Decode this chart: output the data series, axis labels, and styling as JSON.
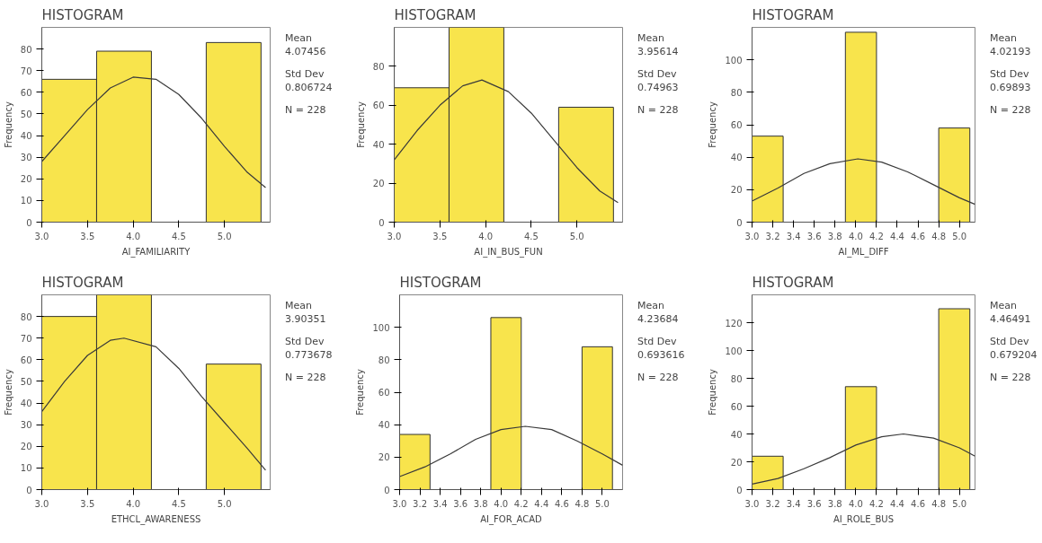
{
  "chart_data": [
    {
      "type": "histogram",
      "title": "HISTOGRAM",
      "xlabel": "AI_FAMILIARITY",
      "ylabel": "Frequency",
      "color": "#f8e44c",
      "bins": [
        3.0,
        3.6,
        4.2,
        4.8,
        5.4
      ],
      "values": [
        66,
        79,
        0,
        83
      ],
      "series": [
        {
          "type": "line",
          "color": "#3a3a3a",
          "x": [
            3.0,
            3.25,
            3.5,
            3.75,
            4.0,
            4.25,
            4.5,
            4.75,
            5.0,
            5.25,
            5.45
          ],
          "values": [
            28,
            40,
            52,
            62,
            67,
            66,
            59,
            48,
            35,
            23,
            16
          ]
        }
      ],
      "xlim": [
        3.0,
        5.5
      ],
      "ylim": [
        0,
        90
      ],
      "xticks": [
        {
          "value": 3,
          "label": "3.0"
        },
        3.5,
        {
          "value": 4,
          "label": "4.0"
        },
        4.5,
        {
          "value": 5,
          "label": "5.0"
        }
      ],
      "yticks": [
        0,
        10,
        20,
        30,
        40,
        50,
        60,
        70,
        80
      ],
      "annotations": [
        "Mean",
        "4.07456",
        "Std Dev",
        "0.806724",
        "N = 228"
      ]
    },
    {
      "type": "histogram",
      "title": "HISTOGRAM",
      "xlabel": "AI_IN_BUS_FUN",
      "ylabel": "Frequency",
      "color": "#f8e44c",
      "bins": [
        3.0,
        3.6,
        4.2,
        4.8,
        5.4
      ],
      "values": [
        69,
        100,
        0,
        59
      ],
      "series": [
        {
          "type": "line",
          "color": "#3a3a3a",
          "x": [
            3.0,
            3.25,
            3.5,
            3.75,
            3.96,
            4.25,
            4.5,
            4.75,
            5.0,
            5.25,
            5.45
          ],
          "values": [
            32,
            47,
            60,
            70,
            73,
            67,
            56,
            42,
            28,
            16,
            10
          ]
        }
      ],
      "xlim": [
        3.0,
        5.5
      ],
      "ylim": [
        0,
        100
      ],
      "xticks": [
        {
          "value": 3,
          "label": "3.0"
        },
        3.5,
        {
          "value": 4,
          "label": "4.0"
        },
        4.5,
        {
          "value": 5,
          "label": "5.0"
        }
      ],
      "yticks": [
        0,
        20,
        40,
        60,
        80
      ],
      "annotations": [
        "Mean",
        "3.95614",
        "Std Dev",
        "0.74963",
        "N = 228"
      ]
    },
    {
      "type": "histogram",
      "title": "HISTOGRAM",
      "xlabel": "AI_ML_DIFF",
      "ylabel": "Frequency",
      "color": "#f8e44c",
      "bins": [
        3.0,
        3.3,
        3.6,
        3.9,
        4.2,
        4.5,
        4.8,
        5.1
      ],
      "values": [
        53,
        0,
        0,
        117,
        0,
        0,
        58
      ],
      "series": [
        {
          "type": "line",
          "color": "#3a3a3a",
          "x": [
            3.0,
            3.25,
            3.5,
            3.75,
            4.02,
            4.25,
            4.5,
            4.75,
            5.0,
            5.15
          ],
          "values": [
            13,
            21,
            30,
            36,
            39,
            37,
            31,
            23,
            15,
            11
          ]
        }
      ],
      "xlim": [
        3.0,
        5.15
      ],
      "ylim": [
        0,
        120
      ],
      "xticks": [
        {
          "value": 3,
          "label": "3.0"
        },
        3.2,
        3.4,
        3.6,
        3.8,
        {
          "value": 4,
          "label": "4.0"
        },
        4.2,
        4.4,
        4.6,
        4.8,
        {
          "value": 5,
          "label": "5.0"
        }
      ],
      "yticks": [
        0,
        20,
        40,
        60,
        80,
        100
      ],
      "annotations": [
        "Mean",
        "4.02193",
        "Std Dev",
        "0.69893",
        "N = 228"
      ]
    },
    {
      "type": "histogram",
      "title": "HISTOGRAM",
      "xlabel": "ETHCL_AWARENESS",
      "ylabel": "Frequency",
      "color": "#f8e44c",
      "bins": [
        3.0,
        3.6,
        4.2,
        4.8,
        5.4
      ],
      "values": [
        80,
        90,
        0,
        58
      ],
      "series": [
        {
          "type": "line",
          "color": "#3a3a3a",
          "x": [
            3.0,
            3.25,
            3.5,
            3.75,
            3.9,
            4.25,
            4.5,
            4.75,
            5.0,
            5.25,
            5.45
          ],
          "values": [
            36,
            50,
            62,
            69,
            70,
            66,
            56,
            43,
            31,
            19,
            9
          ]
        }
      ],
      "xlim": [
        3.0,
        5.5
      ],
      "ylim": [
        0,
        90
      ],
      "xticks": [
        {
          "value": 3,
          "label": "3.0"
        },
        3.5,
        {
          "value": 4,
          "label": "4.0"
        },
        4.5,
        {
          "value": 5,
          "label": "5.0"
        }
      ],
      "yticks": [
        0,
        10,
        20,
        30,
        40,
        50,
        60,
        70,
        80
      ],
      "annotations": [
        "Mean",
        "3.90351",
        "Std Dev",
        "0.773678",
        "N = 228"
      ]
    },
    {
      "type": "histogram",
      "title": "HISTOGRAM",
      "xlabel": "AI_FOR_ACAD",
      "ylabel": "Frequency",
      "color": "#f8e44c",
      "bins": [
        3.0,
        3.3,
        3.6,
        3.9,
        4.2,
        4.5,
        4.8,
        5.1
      ],
      "values": [
        34,
        0,
        0,
        106,
        0,
        0,
        88
      ],
      "series": [
        {
          "type": "line",
          "color": "#3a3a3a",
          "x": [
            3.0,
            3.25,
            3.5,
            3.75,
            4.0,
            4.24,
            4.5,
            4.75,
            5.0,
            5.2
          ],
          "values": [
            8,
            14,
            22,
            31,
            37,
            39,
            37,
            30,
            22,
            15
          ]
        }
      ],
      "xlim": [
        3.0,
        5.2
      ],
      "ylim": [
        0,
        120
      ],
      "xticks": [
        {
          "value": 3,
          "label": "3.0"
        },
        3.2,
        3.4,
        3.6,
        3.8,
        {
          "value": 4,
          "label": "4.0"
        },
        4.2,
        4.4,
        4.6,
        4.8,
        {
          "value": 5,
          "label": "5.0"
        }
      ],
      "yticks": [
        0,
        20,
        40,
        60,
        80,
        100
      ],
      "annotations": [
        "Mean",
        "4.23684",
        "Std Dev",
        "0.693616",
        "N = 228"
      ]
    },
    {
      "type": "histogram",
      "title": "HISTOGRAM",
      "xlabel": "AI_ROLE_BUS",
      "ylabel": "Frequency",
      "color": "#f8e44c",
      "bins": [
        3.0,
        3.3,
        3.6,
        3.9,
        4.2,
        4.5,
        4.8,
        5.1
      ],
      "values": [
        24,
        0,
        0,
        74,
        0,
        0,
        130
      ],
      "series": [
        {
          "type": "line",
          "color": "#3a3a3a",
          "x": [
            3.0,
            3.25,
            3.5,
            3.75,
            4.0,
            4.25,
            4.46,
            4.75,
            5.0,
            5.15
          ],
          "values": [
            4,
            8,
            15,
            23,
            32,
            38,
            40,
            37,
            30,
            24
          ]
        }
      ],
      "xlim": [
        3.0,
        5.15
      ],
      "ylim": [
        0,
        140
      ],
      "xticks": [
        {
          "value": 3,
          "label": "3.0"
        },
        3.2,
        3.4,
        3.6,
        3.8,
        {
          "value": 4,
          "label": "4.0"
        },
        4.2,
        4.4,
        4.6,
        4.8,
        {
          "value": 5,
          "label": "5.0"
        }
      ],
      "yticks": [
        0,
        20,
        40,
        60,
        80,
        100,
        120
      ],
      "annotations": [
        "Mean",
        "4.46491",
        "Std Dev",
        "0.679204",
        "N = 228"
      ]
    }
  ]
}
